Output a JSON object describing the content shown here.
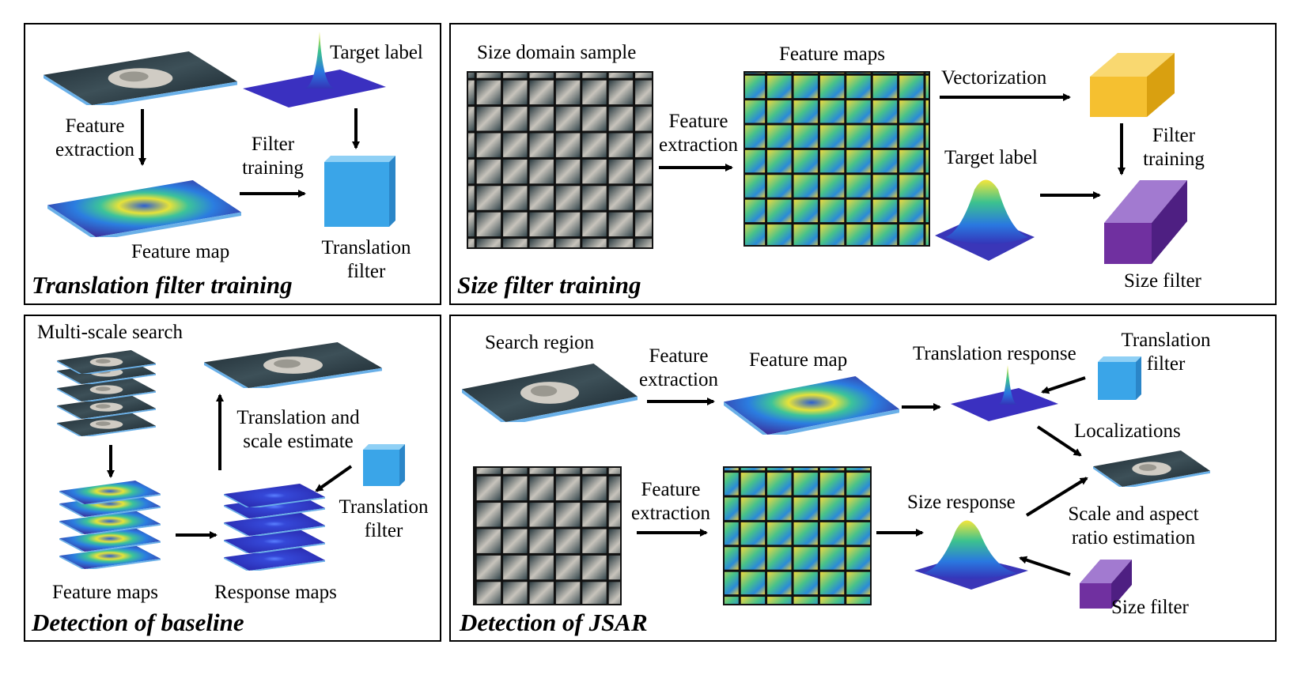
{
  "panels": {
    "translation_training": {
      "title": "Translation filter training",
      "target_label": "Target label",
      "feature_extraction": [
        "Feature",
        "extraction"
      ],
      "filter_training": [
        "Filter",
        "training"
      ],
      "feature_map": "Feature map",
      "translation_filter": [
        "Translation",
        "filter"
      ]
    },
    "size_training": {
      "title": "Size filter training",
      "size_domain_sample": "Size domain sample",
      "feature_maps": "Feature maps",
      "vectorization": "Vectorization",
      "feature_extraction": [
        "Feature",
        "extraction"
      ],
      "target_label": "Target label",
      "filter_training": [
        "Filter",
        "training"
      ],
      "size_filter": "Size filter"
    },
    "baseline_detection": {
      "title": "Detection of baseline",
      "multi_scale_search": "Multi-scale search",
      "translation_scale_estimate": [
        "Translation and",
        "scale estimate"
      ],
      "translation_filter": [
        "Translation",
        "filter"
      ],
      "feature_maps": "Feature maps",
      "response_maps": "Response maps"
    },
    "jsar_detection": {
      "title": "Detection of JSAR",
      "search_region": "Search region",
      "feature_extraction_top": [
        "Feature",
        "extraction"
      ],
      "feature_map": "Feature map",
      "translation_response": "Translation response",
      "translation_filter": [
        "Translation",
        "filter"
      ],
      "localizations": "Localizations",
      "feature_extraction_bottom": [
        "Feature",
        "extraction"
      ],
      "size_response": "Size response",
      "scale_aspect": [
        "Scale and aspect",
        "ratio estimation"
      ],
      "size_filter": "Size filter"
    }
  },
  "colors": {
    "translation_filter": "#3aa5e8",
    "size_filter": "#7030a0",
    "vector": "#f5c030",
    "feature_low": "#3b2d9a",
    "feature_high": "#f2e640"
  }
}
